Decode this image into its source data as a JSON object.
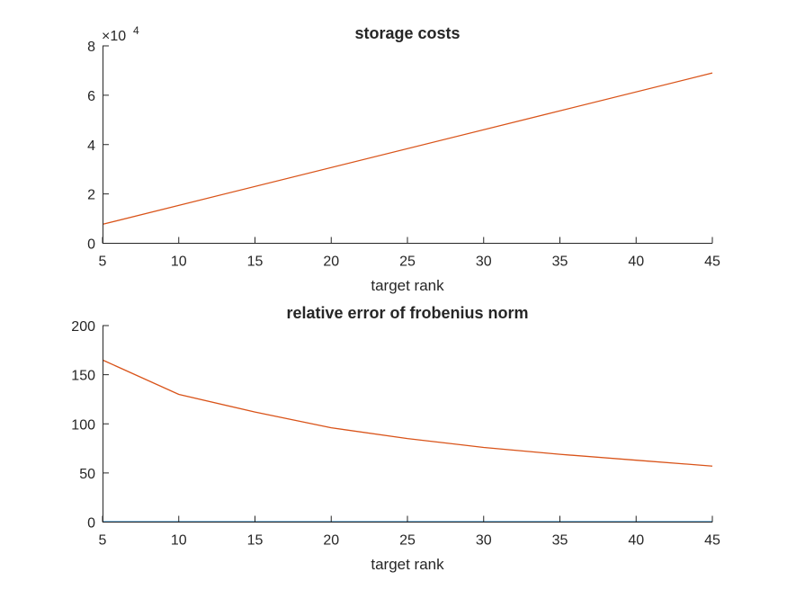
{
  "chart_data": [
    {
      "type": "line",
      "title": "storage costs",
      "xlabel": "target rank",
      "ylabel": "",
      "xlim": [
        5,
        45
      ],
      "ylim": [
        0,
        80000
      ],
      "x_ticks": [
        "5",
        "10",
        "15",
        "20",
        "25",
        "30",
        "35",
        "40",
        "45"
      ],
      "y_ticks": [
        "0",
        "2",
        "4",
        "6",
        "8"
      ],
      "y_exponent": {
        "base": "×10",
        "power": "4"
      },
      "grid": false,
      "series": [
        {
          "color": "#d95319",
          "x": [
            5,
            45
          ],
          "y": [
            7700,
            69000
          ]
        }
      ]
    },
    {
      "type": "line",
      "title": "relative error of frobenius norm",
      "xlabel": "target rank",
      "ylabel": "",
      "xlim": [
        5,
        45
      ],
      "ylim": [
        0,
        200
      ],
      "x_ticks": [
        "5",
        "10",
        "15",
        "20",
        "25",
        "30",
        "35",
        "40",
        "45"
      ],
      "y_ticks": [
        "0",
        "50",
        "100",
        "150",
        "200"
      ],
      "grid": false,
      "series": [
        {
          "color": "#d95319",
          "x": [
            5,
            10,
            15,
            20,
            25,
            30,
            35,
            40,
            45
          ],
          "y": [
            165,
            130,
            112,
            96,
            85,
            76,
            69,
            63,
            57
          ]
        },
        {
          "color": "#0072bd",
          "x": [
            5,
            10,
            15,
            20,
            25,
            30,
            35,
            40,
            45
          ],
          "y": [
            0.3,
            0.3,
            0.3,
            0.3,
            0.3,
            0.3,
            0.3,
            0.3,
            0.3
          ]
        }
      ]
    }
  ]
}
